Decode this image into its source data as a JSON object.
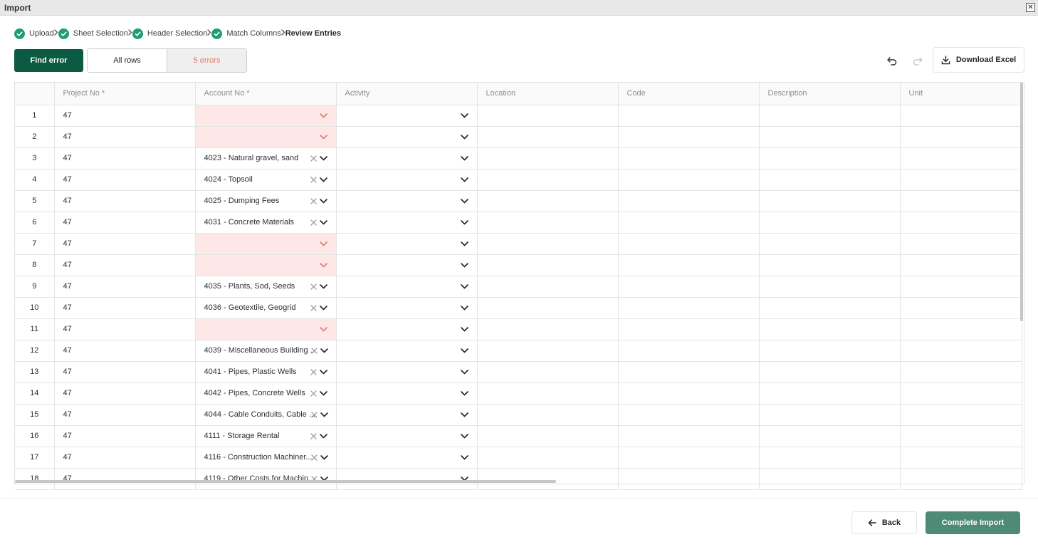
{
  "window": {
    "title": "Import",
    "close_label": "✕"
  },
  "stepper": {
    "steps": [
      {
        "label": "Upload",
        "done": true
      },
      {
        "label": "Sheet Selection",
        "done": true
      },
      {
        "label": "Header Selection",
        "done": true
      },
      {
        "label": "Match Columns",
        "done": true
      },
      {
        "label": "Review Entries",
        "done": false
      }
    ]
  },
  "toolbar": {
    "find_error_label": "Find error",
    "filter_all_label": "All rows",
    "filter_errors_label": "5 errors",
    "download_label": "Download Excel"
  },
  "grid": {
    "columns": [
      "Project No *",
      "Account No *",
      "Activity",
      "Location",
      "Code",
      "Description",
      "Unit"
    ],
    "rows": [
      {
        "n": "1",
        "project": "47",
        "account": "",
        "error": true
      },
      {
        "n": "2",
        "project": "47",
        "account": "",
        "error": true
      },
      {
        "n": "3",
        "project": "47",
        "account": "4023 - Natural gravel, sand",
        "error": false
      },
      {
        "n": "4",
        "project": "47",
        "account": "4024 - Topsoil",
        "error": false
      },
      {
        "n": "5",
        "project": "47",
        "account": "4025 - Dumping Fees",
        "error": false
      },
      {
        "n": "6",
        "project": "47",
        "account": "4031 - Concrete Materials",
        "error": false
      },
      {
        "n": "7",
        "project": "47",
        "account": "",
        "error": true
      },
      {
        "n": "8",
        "project": "47",
        "account": "",
        "error": true
      },
      {
        "n": "9",
        "project": "47",
        "account": "4035 - Plants, Sod, Seeds",
        "error": false
      },
      {
        "n": "10",
        "project": "47",
        "account": "4036 - Geotextile, Geogrid",
        "error": false
      },
      {
        "n": "11",
        "project": "47",
        "account": "",
        "error": true
      },
      {
        "n": "12",
        "project": "47",
        "account": "4039 - Miscellaneous Building ...",
        "error": false
      },
      {
        "n": "13",
        "project": "47",
        "account": "4041 - Pipes, Plastic Wells",
        "error": false
      },
      {
        "n": "14",
        "project": "47",
        "account": "4042 - Pipes, Concrete Wells",
        "error": false
      },
      {
        "n": "15",
        "project": "47",
        "account": "4044 - Cable Conduits, Cable ...",
        "error": false
      },
      {
        "n": "16",
        "project": "47",
        "account": "4111 - Storage Rental",
        "error": false
      },
      {
        "n": "17",
        "project": "47",
        "account": "4116 - Construction Machiner...",
        "error": false
      },
      {
        "n": "18",
        "project": "47",
        "account": "4119 - Other Costs for Machin...",
        "error": false
      }
    ]
  },
  "footer": {
    "back_label": "Back",
    "complete_label": "Complete Import"
  },
  "colors": {
    "primary": "#0c5a41",
    "success": "#1e9e6e",
    "error_bg": "#fde7e7",
    "error_icon": "#e07a6d",
    "complete": "#4e8a76"
  }
}
